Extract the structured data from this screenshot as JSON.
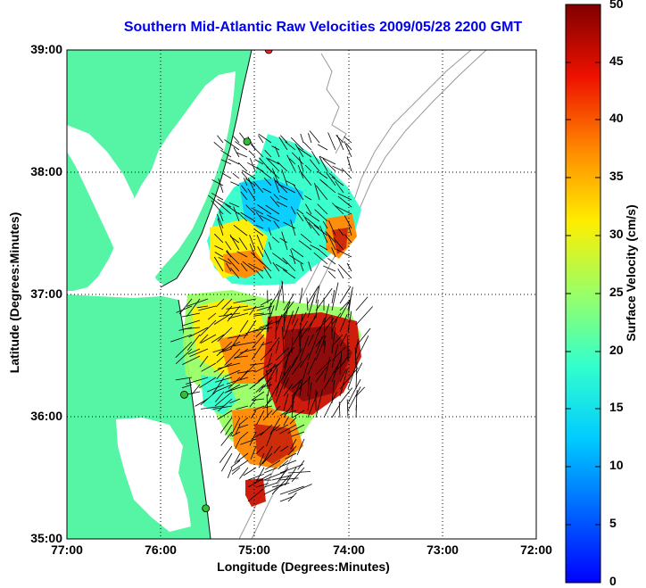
{
  "title": "Southern Mid-Atlantic Raw Velocities 2009/05/28 2200 GMT",
  "xlabel": "Longitude (Degrees:Minutes)",
  "ylabel": "Latitude (Degrees:Minutes)",
  "colorbar": {
    "label": "Surface Velocity (cm/s)",
    "range": [
      0,
      50
    ],
    "ticks": [
      "0",
      "5",
      "10",
      "15",
      "20",
      "25",
      "30",
      "35",
      "40",
      "45",
      "50"
    ]
  },
  "map": {
    "lon_range": [
      -77,
      -72
    ],
    "lat_range": [
      35,
      39
    ],
    "x_ticks": [
      "77:00",
      "76:00",
      "75:00",
      "74:00",
      "73:00",
      "72:00"
    ],
    "y_ticks": [
      "39:00",
      "38:00",
      "37:00",
      "36:00",
      "35:00"
    ],
    "land_color": "#55f5a5",
    "water_color": "#ffffff",
    "grid": "dotted",
    "sites": [
      {
        "lon": -74.85,
        "lat": 39.0,
        "color": "#ff2020"
      },
      {
        "lon": -75.08,
        "lat": 38.25,
        "color": "#30c030"
      },
      {
        "lon": -75.75,
        "lat": 36.18,
        "color": "#30c030"
      },
      {
        "lon": -75.52,
        "lat": 35.25,
        "color": "#30c030"
      }
    ]
  }
}
